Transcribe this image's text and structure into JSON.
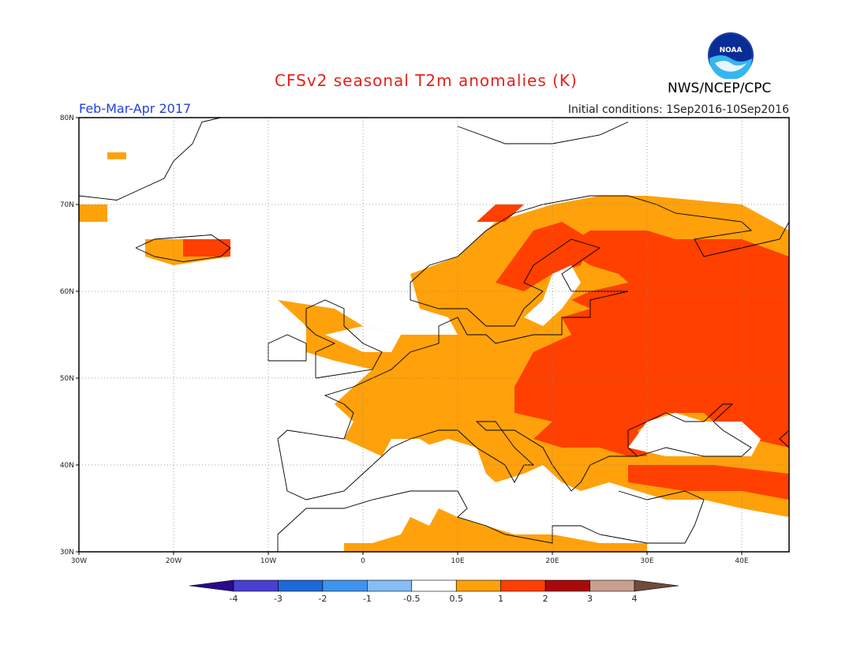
{
  "title": "CFSv2 seasonal T2m anomalies (K)",
  "period": "Feb-Mar-Apr 2017",
  "initial_conditions": "Initial conditions: 1Sep2016-10Sep2016",
  "agency": "NWS/NCEP/CPC",
  "logo_text": "NOAA",
  "map": {
    "lon_range": [
      -30,
      45
    ],
    "lat_range": [
      30,
      80
    ],
    "lat_labels": [
      {
        "lat": 80,
        "text": "80N"
      },
      {
        "lat": 70,
        "text": "70N"
      },
      {
        "lat": 60,
        "text": "60N"
      },
      {
        "lat": 50,
        "text": "50N"
      },
      {
        "lat": 40,
        "text": "40N"
      },
      {
        "lat": 30,
        "text": "30N"
      }
    ],
    "lon_labels": [
      {
        "lon": -30,
        "text": "30W"
      },
      {
        "lon": -20,
        "text": "20W"
      },
      {
        "lon": -10,
        "text": "10W"
      },
      {
        "lon": 0,
        "text": "0"
      },
      {
        "lon": 10,
        "text": "10E"
      },
      {
        "lon": 20,
        "text": "20E"
      },
      {
        "lon": 30,
        "text": "30E"
      },
      {
        "lon": 40,
        "text": "40E"
      }
    ]
  },
  "colorbar": {
    "colors": [
      "#2a0a8c",
      "#4a3fd0",
      "#1f68d6",
      "#3f94ef",
      "#86bdf5",
      "#ffffff",
      "#ffa10a",
      "#ff4000",
      "#a80a0a",
      "#c9a08d",
      "#704a3c"
    ],
    "labels": [
      "-4",
      "-3",
      "-2",
      "-1",
      "-0.5",
      "0.5",
      "1",
      "2",
      "3",
      "4"
    ]
  },
  "anomaly_colors": {
    "warm1": "#ffa10a",
    "warm2": "#ff4000"
  }
}
